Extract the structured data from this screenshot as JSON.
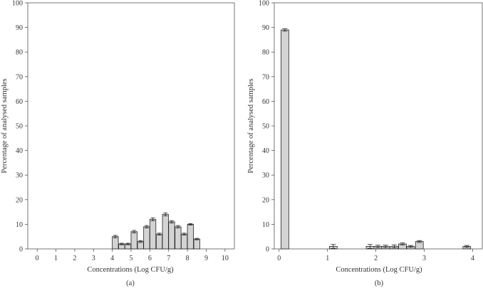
{
  "chart_data": [
    {
      "type": "bar",
      "panel_label": "(a)",
      "xlabel": "Concentrations (Log CFU/g)",
      "ylabel": "Percentage of analysed samples",
      "xlim": [
        -0.5,
        10.5
      ],
      "ylim": [
        0,
        100
      ],
      "xticks": [
        0,
        1,
        2,
        3,
        4,
        5,
        6,
        7,
        8,
        9,
        10
      ],
      "yticks": [
        0,
        10,
        20,
        30,
        40,
        50,
        60,
        70,
        80,
        90,
        100
      ],
      "bar_width": 0.32,
      "bar_color": "#d3d3d3",
      "grid": false,
      "bars": [
        {
          "x": 4.16,
          "value": 5,
          "error": 0.5
        },
        {
          "x": 4.5,
          "value": 2,
          "error": 0.3
        },
        {
          "x": 4.83,
          "value": 2,
          "error": 0.3
        },
        {
          "x": 5.16,
          "value": 7,
          "error": 0.5
        },
        {
          "x": 5.5,
          "value": 3,
          "error": 0.4
        },
        {
          "x": 5.83,
          "value": 9,
          "error": 0.5
        },
        {
          "x": 6.16,
          "value": 12,
          "error": 0.6
        },
        {
          "x": 6.5,
          "value": 6,
          "error": 0.4
        },
        {
          "x": 6.83,
          "value": 14,
          "error": 0.6
        },
        {
          "x": 7.16,
          "value": 11,
          "error": 0.5
        },
        {
          "x": 7.5,
          "value": 9,
          "error": 0.5
        },
        {
          "x": 7.83,
          "value": 6,
          "error": 0.4
        },
        {
          "x": 8.16,
          "value": 10,
          "error": 0.3
        },
        {
          "x": 8.5,
          "value": 4,
          "error": 0.3
        }
      ]
    },
    {
      "type": "bar",
      "panel_label": "(b)",
      "xlabel": "Concentrations (Log CFU/g)",
      "ylabel": "Percentage of analysed samples",
      "xlim": [
        -0.1,
        4.2
      ],
      "ylim": [
        0,
        100
      ],
      "xticks": [
        0,
        1,
        2,
        3,
        4
      ],
      "yticks": [
        0,
        10,
        20,
        30,
        40,
        50,
        60,
        70,
        80,
        90,
        100
      ],
      "bar_width": 0.16,
      "bar_color": "#d3d3d3",
      "grid": false,
      "bars": [
        {
          "x": 0.12,
          "value": 89,
          "error": 0.5
        },
        {
          "x": 1.12,
          "value": 1,
          "error": 0.8
        },
        {
          "x": 1.88,
          "value": 1,
          "error": 0.8
        },
        {
          "x": 2.04,
          "value": 1,
          "error": 0.5
        },
        {
          "x": 2.2,
          "value": 1,
          "error": 0.5
        },
        {
          "x": 2.38,
          "value": 1,
          "error": 0.6
        },
        {
          "x": 2.55,
          "value": 2,
          "error": 0.4
        },
        {
          "x": 2.72,
          "value": 1,
          "error": 0.4
        },
        {
          "x": 2.9,
          "value": 3,
          "error": 0.4
        },
        {
          "x": 3.88,
          "value": 1,
          "error": 0.4
        }
      ]
    }
  ]
}
